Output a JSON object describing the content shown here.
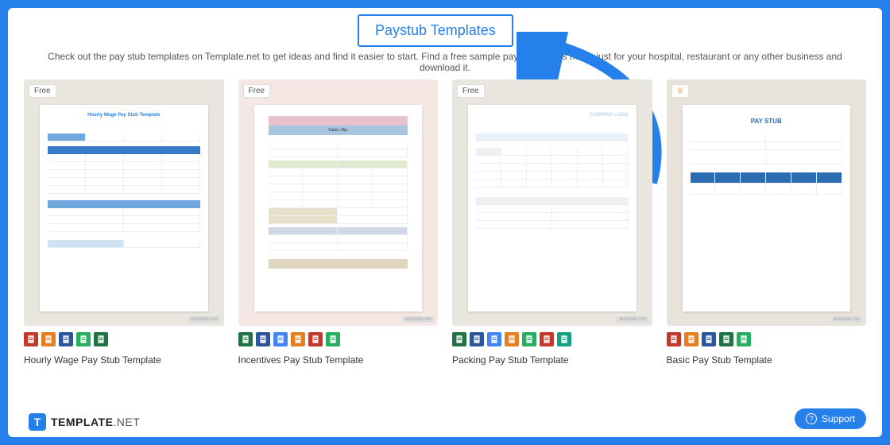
{
  "page": {
    "title": "Paystub Templates",
    "description": "Check out the pay stub templates on Template.net to get ideas and find it easier to start. Find a free sample pay stub that is made just for your hospital, restaurant or any other business and download it."
  },
  "cards": [
    {
      "badge": "Free",
      "badge_type": "free",
      "thumb_bg": "#e9e5df",
      "preview_title": "Hourly Wage Pay Stub Template",
      "title": "Hourly Wage Pay Stub Template",
      "icons": [
        {
          "bg": "#c0392b",
          "glyph": "pdf"
        },
        {
          "bg": "#e67e22",
          "glyph": "doc"
        },
        {
          "bg": "#2b579a",
          "glyph": "word"
        },
        {
          "bg": "#27ae60",
          "glyph": "sheet"
        },
        {
          "bg": "#217346",
          "glyph": "excel"
        }
      ]
    },
    {
      "badge": "Free",
      "badge_type": "free",
      "thumb_bg": "#f5e8e4",
      "preview_title": "Salary Slip",
      "title": "Incentives Pay Stub Template",
      "icons": [
        {
          "bg": "#217346",
          "glyph": "excel"
        },
        {
          "bg": "#2b579a",
          "glyph": "word"
        },
        {
          "bg": "#4285f4",
          "glyph": "gdoc"
        },
        {
          "bg": "#e67e22",
          "glyph": "doc"
        },
        {
          "bg": "#c0392b",
          "glyph": "pdf"
        },
        {
          "bg": "#27ae60",
          "glyph": "sheet"
        }
      ]
    },
    {
      "badge": "Free",
      "badge_type": "free",
      "thumb_bg": "#e9e5df",
      "preview_title": "COMPANY LOGO",
      "title": "Packing Pay Stub Template",
      "icons": [
        {
          "bg": "#217346",
          "glyph": "excel"
        },
        {
          "bg": "#2b579a",
          "glyph": "word"
        },
        {
          "bg": "#4285f4",
          "glyph": "gdoc"
        },
        {
          "bg": "#e67e22",
          "glyph": "doc"
        },
        {
          "bg": "#27ae60",
          "glyph": "sheet"
        },
        {
          "bg": "#c0392b",
          "glyph": "pdf"
        },
        {
          "bg": "#16a085",
          "glyph": "num"
        }
      ]
    },
    {
      "badge": "♕",
      "badge_type": "crown",
      "thumb_bg": "#e8e4dc",
      "preview_title": "PAY STUB",
      "title": "Basic Pay Stub Template",
      "icons": [
        {
          "bg": "#c0392b",
          "glyph": "pdf"
        },
        {
          "bg": "#e67e22",
          "glyph": "doc"
        },
        {
          "bg": "#2b579a",
          "glyph": "word"
        },
        {
          "bg": "#217346",
          "glyph": "excel"
        },
        {
          "bg": "#27ae60",
          "glyph": "sheet"
        }
      ]
    }
  ],
  "footer": {
    "logo_letter": "T",
    "brand_bold": "TEMPLATE",
    "brand_light": ".NET"
  },
  "support": {
    "label": "Support"
  },
  "colors": {
    "frame": "#2680eb",
    "accent": "#2680eb",
    "arrow": "#2680eb"
  },
  "watermark": "template.net"
}
